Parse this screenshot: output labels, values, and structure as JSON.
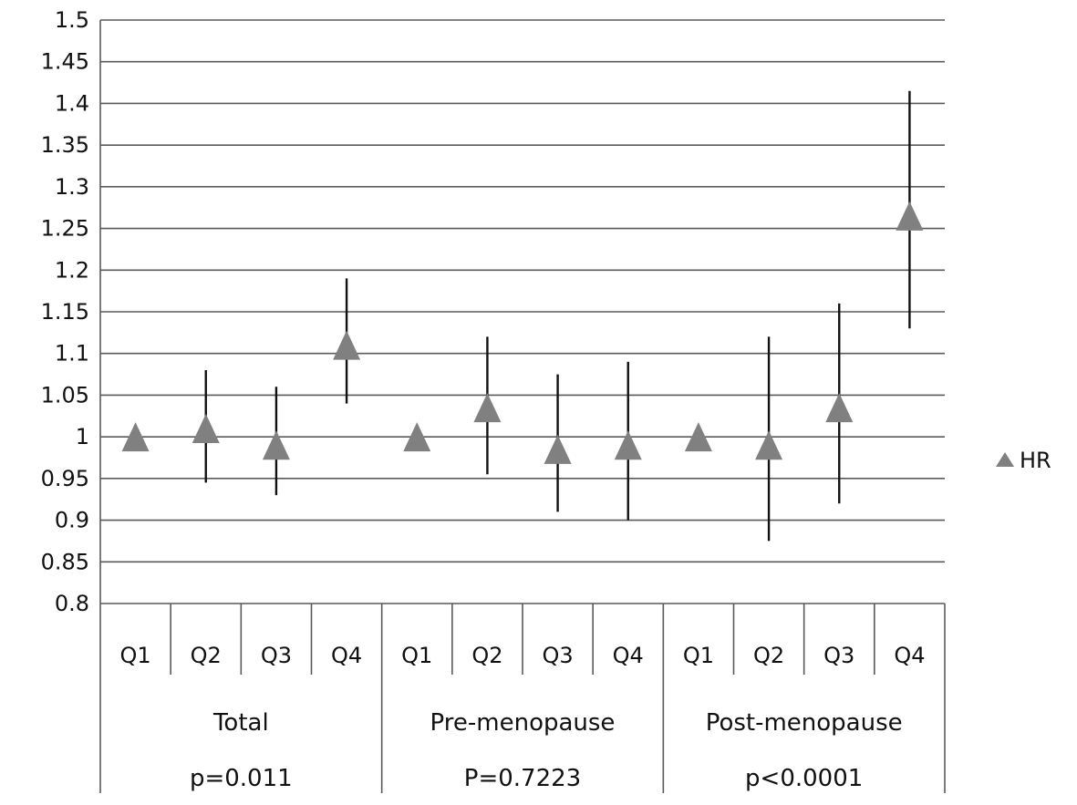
{
  "chart_data": {
    "type": "scatter",
    "title": "",
    "xlabel": "",
    "ylabel": "",
    "ylim": [
      0.8,
      1.5
    ],
    "ytick_step": 0.05,
    "y_ticks": [
      "0.8",
      "0.85",
      "0.9",
      "0.95",
      "1",
      "1.05",
      "1.1",
      "1.15",
      "1.2",
      "1.25",
      "1.3",
      "1.35",
      "1.4",
      "1.45",
      "1.5"
    ],
    "grid": true,
    "legend": {
      "position": "right",
      "entries": [
        "HR"
      ]
    },
    "marker_color": "#808080",
    "groups": [
      {
        "name": "Total",
        "pvalue": "p=0.011"
      },
      {
        "name": "Pre-menopause",
        "pvalue": "P=0.7223"
      },
      {
        "name": "Post-menopause",
        "pvalue": "p<0.0001"
      }
    ],
    "categories": [
      "Q1",
      "Q2",
      "Q3",
      "Q4",
      "Q1",
      "Q2",
      "Q3",
      "Q4",
      "Q1",
      "Q2",
      "Q3",
      "Q4"
    ],
    "series": [
      {
        "name": "HR",
        "values": [
          1.0,
          1.01,
          0.99,
          1.11,
          1.0,
          1.035,
          0.985,
          0.99,
          1.0,
          0.99,
          1.035,
          1.265
        ],
        "lower": [
          null,
          0.945,
          0.93,
          1.04,
          null,
          0.955,
          0.91,
          0.9,
          null,
          0.875,
          0.92,
          1.13
        ],
        "upper": [
          null,
          1.08,
          1.06,
          1.19,
          null,
          1.12,
          1.075,
          1.09,
          null,
          1.12,
          1.16,
          1.415
        ]
      }
    ]
  }
}
